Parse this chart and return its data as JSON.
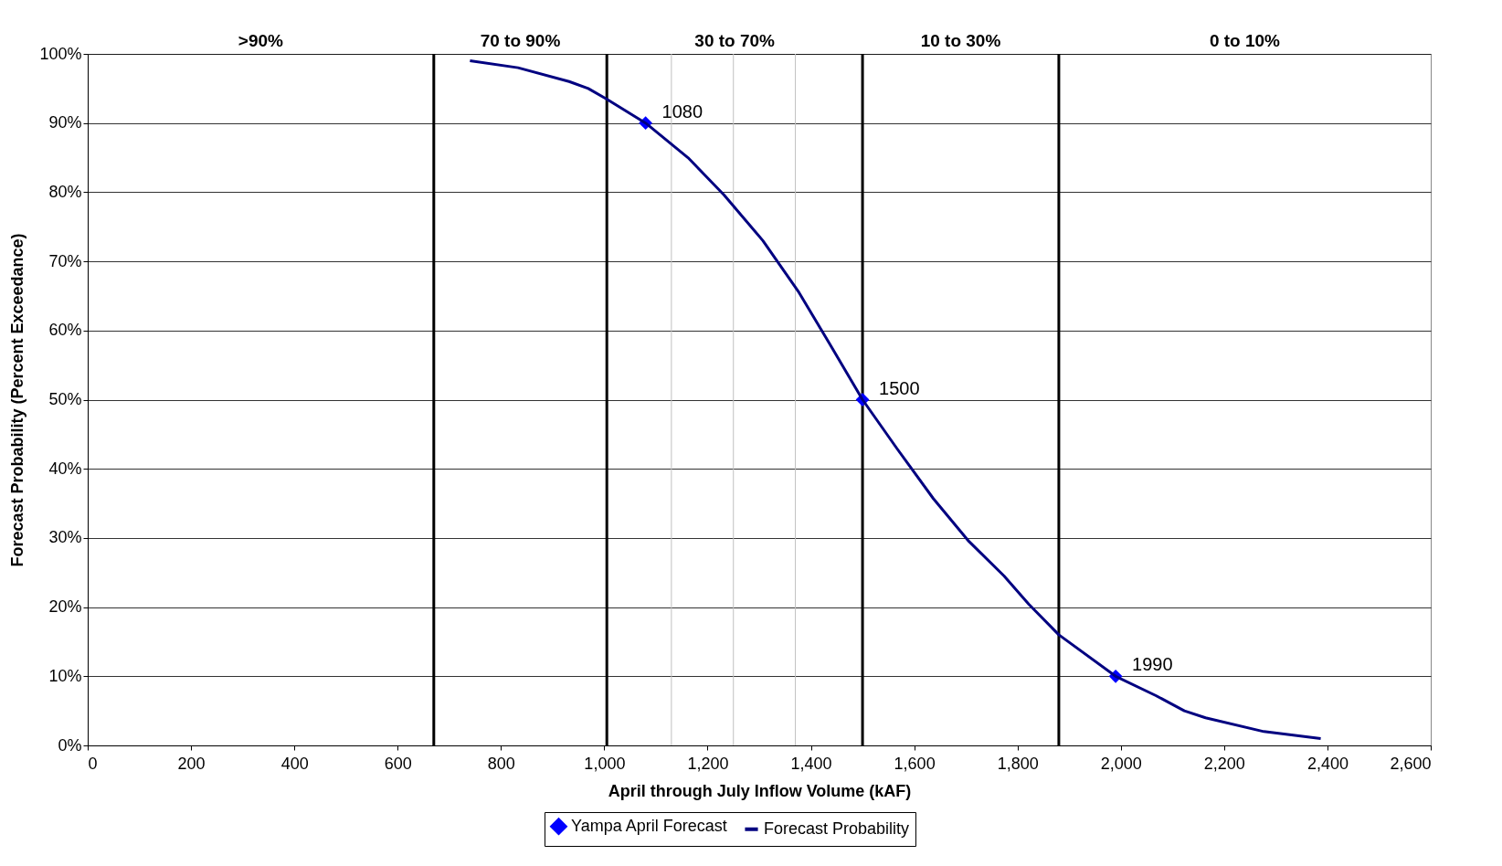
{
  "chart_data": {
    "type": "line",
    "xlabel": "April through July Inflow Volume (kAF)",
    "ylabel": "Forecast Probability (Percent Exceedance)",
    "xlim": [
      0,
      2600
    ],
    "xticks": [
      0,
      200,
      400,
      600,
      800,
      {
        "value": 1000,
        "label": "1,000"
      },
      {
        "value": 1200,
        "label": "1,200"
      },
      {
        "value": 1400,
        "label": "1,400"
      },
      {
        "value": 1600,
        "label": "1,600"
      },
      {
        "value": 1800,
        "label": "1,800"
      },
      {
        "value": 2000,
        "label": "2,000"
      },
      {
        "value": 2200,
        "label": "2,200"
      },
      {
        "value": 2400,
        "label": "2,400"
      },
      {
        "value": 2600,
        "label": "2,600"
      }
    ],
    "ylim": [
      0,
      100
    ],
    "yticks": [
      {
        "value": 0,
        "label": "0%"
      },
      {
        "value": 10,
        "label": "10%"
      },
      {
        "value": 20,
        "label": "20%"
      },
      {
        "value": 30,
        "label": "30%"
      },
      {
        "value": 40,
        "label": "40%"
      },
      {
        "value": 50,
        "label": "50%"
      },
      {
        "value": 60,
        "label": "60%"
      },
      {
        "value": 70,
        "label": "70%"
      },
      {
        "value": 80,
        "label": "80%"
      },
      {
        "value": 90,
        "label": "90%"
      },
      {
        "value": 100,
        "label": "100%"
      }
    ],
    "grid": "y",
    "legend": "bottom",
    "series": [
      {
        "name": "Yampa April Forecast",
        "type": "scatter",
        "marker": "diamond",
        "color": "#0000ff",
        "x": [
          1080,
          1500,
          1990
        ],
        "values": [
          90,
          50,
          10
        ]
      },
      {
        "name": "Forecast Probability",
        "type": "line",
        "marker": "none",
        "color": "#000080",
        "x": [
          740,
          833,
          932,
          969,
          1004,
          1080,
          1162,
          1232,
          1307,
          1377,
          1437,
          1500,
          1566,
          1637,
          1706,
          1774,
          1822,
          1880,
          1990,
          2068,
          2123,
          2164,
          2277,
          2387
        ],
        "values": [
          99,
          98,
          96,
          95,
          93.5,
          90,
          85,
          79.6,
          73,
          65.5,
          58,
          50,
          43,
          35.7,
          29.5,
          24.5,
          20.4,
          16,
          10,
          7.2,
          5,
          4,
          2,
          1
        ]
      }
    ],
    "ref_lines": [
      {
        "axis": "x",
        "value": 670,
        "color": "#000000"
      },
      {
        "axis": "x",
        "value": 1005,
        "color": "#000000"
      },
      {
        "axis": "x",
        "value": 1500,
        "color": "#000000"
      },
      {
        "axis": "x",
        "value": 1880,
        "color": "#000000"
      },
      {
        "axis": "x",
        "value": 1130,
        "color": "#c0c0c0"
      },
      {
        "axis": "x",
        "value": 1250,
        "color": "#c0c0c0"
      },
      {
        "axis": "x",
        "value": 1370,
        "color": "#c0c0c0"
      }
    ],
    "annotations": [
      ">90%",
      "70 to 90%",
      "30 to 70%",
      "10 to 30%",
      "0 to 10%",
      {
        "text": "1080",
        "x": 1080,
        "y": 90
      },
      {
        "text": "1500",
        "x": 1500,
        "y": 50
      },
      {
        "text": "1990",
        "x": 1990,
        "y": 10
      }
    ]
  }
}
